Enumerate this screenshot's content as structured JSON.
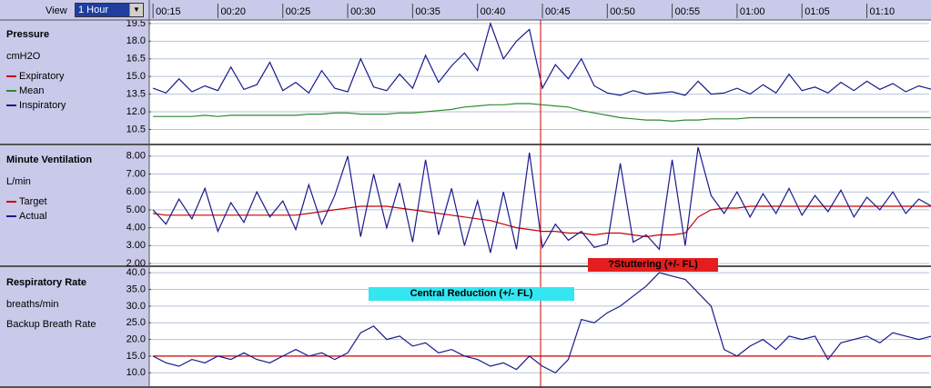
{
  "toolbar": {
    "view_label": "View",
    "view_value": "1 Hour"
  },
  "chart_data": [
    {
      "type": "line",
      "title": "Pressure",
      "y_label": "cmH2O",
      "legend_style": "line",
      "x": [
        15,
        16,
        17,
        18,
        19,
        20,
        21,
        22,
        23,
        24,
        25,
        26,
        27,
        28,
        29,
        30,
        31,
        32,
        33,
        34,
        35,
        36,
        37,
        38,
        39,
        40,
        41,
        42,
        43,
        44,
        45,
        46,
        47,
        48,
        49,
        50,
        51,
        52,
        53,
        54,
        55,
        56,
        57,
        58,
        59,
        60,
        61,
        62,
        63,
        64,
        65,
        66,
        67,
        68,
        69,
        70,
        71,
        72,
        73,
        74,
        75
      ],
      "xlim": [
        14.85,
        74.8
      ],
      "xticks": [
        {
          "value": 15,
          "label": "00:15"
        },
        {
          "value": 20,
          "label": "00:20"
        },
        {
          "value": 25,
          "label": "00:25"
        },
        {
          "value": 30,
          "label": "00:30"
        },
        {
          "value": 35,
          "label": "00:35"
        },
        {
          "value": 40,
          "label": "00:40"
        },
        {
          "value": 45,
          "label": "00:45"
        },
        {
          "value": 50,
          "label": "00:50"
        },
        {
          "value": 55,
          "label": "00:55"
        },
        {
          "value": 60,
          "label": "01:00"
        },
        {
          "value": 65,
          "label": "01:05"
        },
        {
          "value": 70,
          "label": "01:10"
        }
      ],
      "ylim": [
        9.3,
        19.8
      ],
      "yticks": [
        19.5,
        {
          "value": 18,
          "label": "18.0"
        },
        16.5,
        {
          "value": 15,
          "label": "15.0"
        },
        13.5,
        {
          "value": 12,
          "label": "12.0"
        },
        10.5
      ],
      "grid": true,
      "series": [
        {
          "name": "Expiratory",
          "color": "#cc0000",
          "values": [
            null,
            null,
            null,
            null,
            null,
            null,
            null,
            null,
            null,
            null,
            null,
            null,
            null,
            null,
            null,
            null,
            null,
            null,
            null,
            null,
            null,
            null,
            null,
            null,
            null,
            null,
            null,
            null,
            null,
            null,
            null,
            null,
            null,
            null,
            null,
            null,
            null,
            null,
            null,
            null,
            null,
            null,
            null,
            null,
            null,
            null,
            null,
            null,
            null,
            null,
            null,
            null,
            null,
            null,
            null,
            null,
            null,
            null,
            null,
            null,
            null
          ]
        },
        {
          "name": "Mean",
          "color": "#2e8b2e",
          "values": [
            11.6,
            11.6,
            11.6,
            11.6,
            11.7,
            11.6,
            11.7,
            11.7,
            11.7,
            11.7,
            11.7,
            11.7,
            11.8,
            11.8,
            11.9,
            11.9,
            11.8,
            11.8,
            11.8,
            11.9,
            11.9,
            12.0,
            12.1,
            12.2,
            12.4,
            12.5,
            12.6,
            12.6,
            12.7,
            12.7,
            12.6,
            12.5,
            12.4,
            12.1,
            11.9,
            11.7,
            11.5,
            11.4,
            11.3,
            11.3,
            11.2,
            11.3,
            11.3,
            11.4,
            11.4,
            11.4,
            11.5,
            11.5,
            11.5,
            11.5,
            11.5,
            11.5,
            11.5,
            11.5,
            11.5,
            11.5,
            11.5,
            11.5,
            11.5,
            11.5,
            11.5
          ]
        },
        {
          "name": "Inspiratory",
          "color": "#1a1a8c",
          "values": [
            14.0,
            13.6,
            14.8,
            13.7,
            14.2,
            13.8,
            15.8,
            13.9,
            14.3,
            16.2,
            13.8,
            14.5,
            13.6,
            15.5,
            14.0,
            13.7,
            16.5,
            14.1,
            13.8,
            15.2,
            14.0,
            16.8,
            14.5,
            15.9,
            17.0,
            15.5,
            19.5,
            16.5,
            18.0,
            19.0,
            14.0,
            16.0,
            14.8,
            16.5,
            14.2,
            13.6,
            13.4,
            13.8,
            13.5,
            13.6,
            13.7,
            13.4,
            14.6,
            13.5,
            13.6,
            14.0,
            13.5,
            14.3,
            13.6,
            15.2,
            13.8,
            14.1,
            13.6,
            14.5,
            13.8,
            14.6,
            13.9,
            14.4,
            13.7,
            14.2,
            13.9
          ]
        }
      ]
    },
    {
      "type": "line",
      "title": "Minute Ventilation",
      "y_label": "L/min",
      "legend_style": "line",
      "x": [
        15,
        16,
        17,
        18,
        19,
        20,
        21,
        22,
        23,
        24,
        25,
        26,
        27,
        28,
        29,
        30,
        31,
        32,
        33,
        34,
        35,
        36,
        37,
        38,
        39,
        40,
        41,
        42,
        43,
        44,
        45,
        46,
        47,
        48,
        49,
        50,
        51,
        52,
        53,
        54,
        55,
        56,
        57,
        58,
        59,
        60,
        61,
        62,
        63,
        64,
        65,
        66,
        67,
        68,
        69,
        70,
        71,
        72,
        73,
        74,
        75
      ],
      "xlim": [
        14.85,
        74.8
      ],
      "ylim": [
        1.9,
        8.6
      ],
      "yticks": [
        {
          "value": 8,
          "label": "8.00"
        },
        {
          "value": 7,
          "label": "7.00"
        },
        {
          "value": 6,
          "label": "6.00"
        },
        {
          "value": 5,
          "label": "5.00"
        },
        {
          "value": 4,
          "label": "4.00"
        },
        {
          "value": 3,
          "label": "3.00"
        },
        {
          "value": 2,
          "label": "2.00"
        }
      ],
      "grid": true,
      "series": [
        {
          "name": "Target",
          "color": "#cc0000",
          "values": [
            4.8,
            4.7,
            4.7,
            4.7,
            4.7,
            4.7,
            4.7,
            4.7,
            4.7,
            4.7,
            4.7,
            4.7,
            4.8,
            4.9,
            5.0,
            5.1,
            5.2,
            5.2,
            5.2,
            5.1,
            5.0,
            4.9,
            4.8,
            4.7,
            4.6,
            4.5,
            4.4,
            4.2,
            4.0,
            3.9,
            3.8,
            3.8,
            3.7,
            3.7,
            3.6,
            3.7,
            3.7,
            3.6,
            3.5,
            3.6,
            3.6,
            3.7,
            4.6,
            5.0,
            5.1,
            5.1,
            5.2,
            5.2,
            5.2,
            5.2,
            5.2,
            5.2,
            5.2,
            5.2,
            5.2,
            5.2,
            5.2,
            5.2,
            5.2,
            5.2,
            5.2
          ]
        },
        {
          "name": "Actual",
          "color": "#1a1a8c",
          "values": [
            5.0,
            4.2,
            5.6,
            4.5,
            6.2,
            3.8,
            5.4,
            4.3,
            6.0,
            4.6,
            5.5,
            3.9,
            6.4,
            4.2,
            5.8,
            8.0,
            3.5,
            7.0,
            4.0,
            6.5,
            3.2,
            7.8,
            3.6,
            6.2,
            3.0,
            5.5,
            2.6,
            6.0,
            2.8,
            8.2,
            2.9,
            4.2,
            3.3,
            3.8,
            2.9,
            3.1,
            7.6,
            3.2,
            3.6,
            2.8,
            7.8,
            3.0,
            8.5,
            5.8,
            4.8,
            6.0,
            4.6,
            5.9,
            4.8,
            6.2,
            4.7,
            5.8,
            4.9,
            6.1,
            4.6,
            5.7,
            5.0,
            6.0,
            4.8,
            5.6,
            5.2
          ]
        }
      ]
    },
    {
      "type": "line",
      "title": "Respiratory Rate",
      "y_label": "breaths/min",
      "legend_style": "text",
      "x": [
        15,
        16,
        17,
        18,
        19,
        20,
        21,
        22,
        23,
        24,
        25,
        26,
        27,
        28,
        29,
        30,
        31,
        32,
        33,
        34,
        35,
        36,
        37,
        38,
        39,
        40,
        41,
        42,
        43,
        44,
        45,
        46,
        47,
        48,
        49,
        50,
        51,
        52,
        53,
        54,
        55,
        56,
        57,
        58,
        59,
        60,
        61,
        62,
        63,
        64,
        65,
        66,
        67,
        68,
        69,
        70,
        71,
        72,
        73,
        74,
        75
      ],
      "xlim": [
        14.85,
        74.8
      ],
      "ylim": [
        6.0,
        41.4
      ],
      "yticks": [
        {
          "value": 40,
          "label": "40.0"
        },
        {
          "value": 35,
          "label": "35.0"
        },
        {
          "value": 30,
          "label": "30.0"
        },
        {
          "value": 25,
          "label": "25.0"
        },
        {
          "value": 20,
          "label": "20.0"
        },
        {
          "value": 15,
          "label": "15.0"
        },
        {
          "value": 10,
          "label": "10.0"
        }
      ],
      "grid": true,
      "annotations": [
        {
          "text": "Central Reduction (+/- FL)",
          "color": "#33e6f0"
        },
        {
          "text": "?Stuttering (+/- FL)",
          "color": "#e41e1e"
        }
      ],
      "series": [
        {
          "name": "Backup Breath Rate",
          "color": "#cc0000",
          "values": [
            15,
            15,
            15,
            15,
            15,
            15,
            15,
            15,
            15,
            15,
            15,
            15,
            15,
            15,
            15,
            15,
            15,
            15,
            15,
            15,
            15,
            15,
            15,
            15,
            15,
            15,
            15,
            15,
            15,
            15,
            15,
            15,
            15,
            15,
            15,
            15,
            15,
            15,
            15,
            15,
            15,
            15,
            15,
            15,
            15,
            15,
            15,
            15,
            15,
            15,
            15,
            15,
            15,
            15,
            15,
            15,
            15,
            15,
            15,
            15,
            15
          ]
        },
        {
          "name": null,
          "color": "#1a1a8c",
          "values": [
            15,
            13,
            12,
            14,
            13,
            15,
            14,
            16,
            14,
            13,
            15,
            17,
            15,
            16,
            14,
            16,
            22,
            24,
            20,
            21,
            18,
            19,
            16,
            17,
            15,
            14,
            12,
            13,
            11,
            15,
            12,
            10,
            14,
            26,
            25,
            28,
            30,
            33,
            36,
            40,
            39,
            38,
            34,
            30,
            17,
            15,
            18,
            20,
            17,
            21,
            20,
            21,
            14,
            19,
            20,
            21,
            19,
            22,
            21,
            20,
            21
          ]
        }
      ]
    }
  ]
}
